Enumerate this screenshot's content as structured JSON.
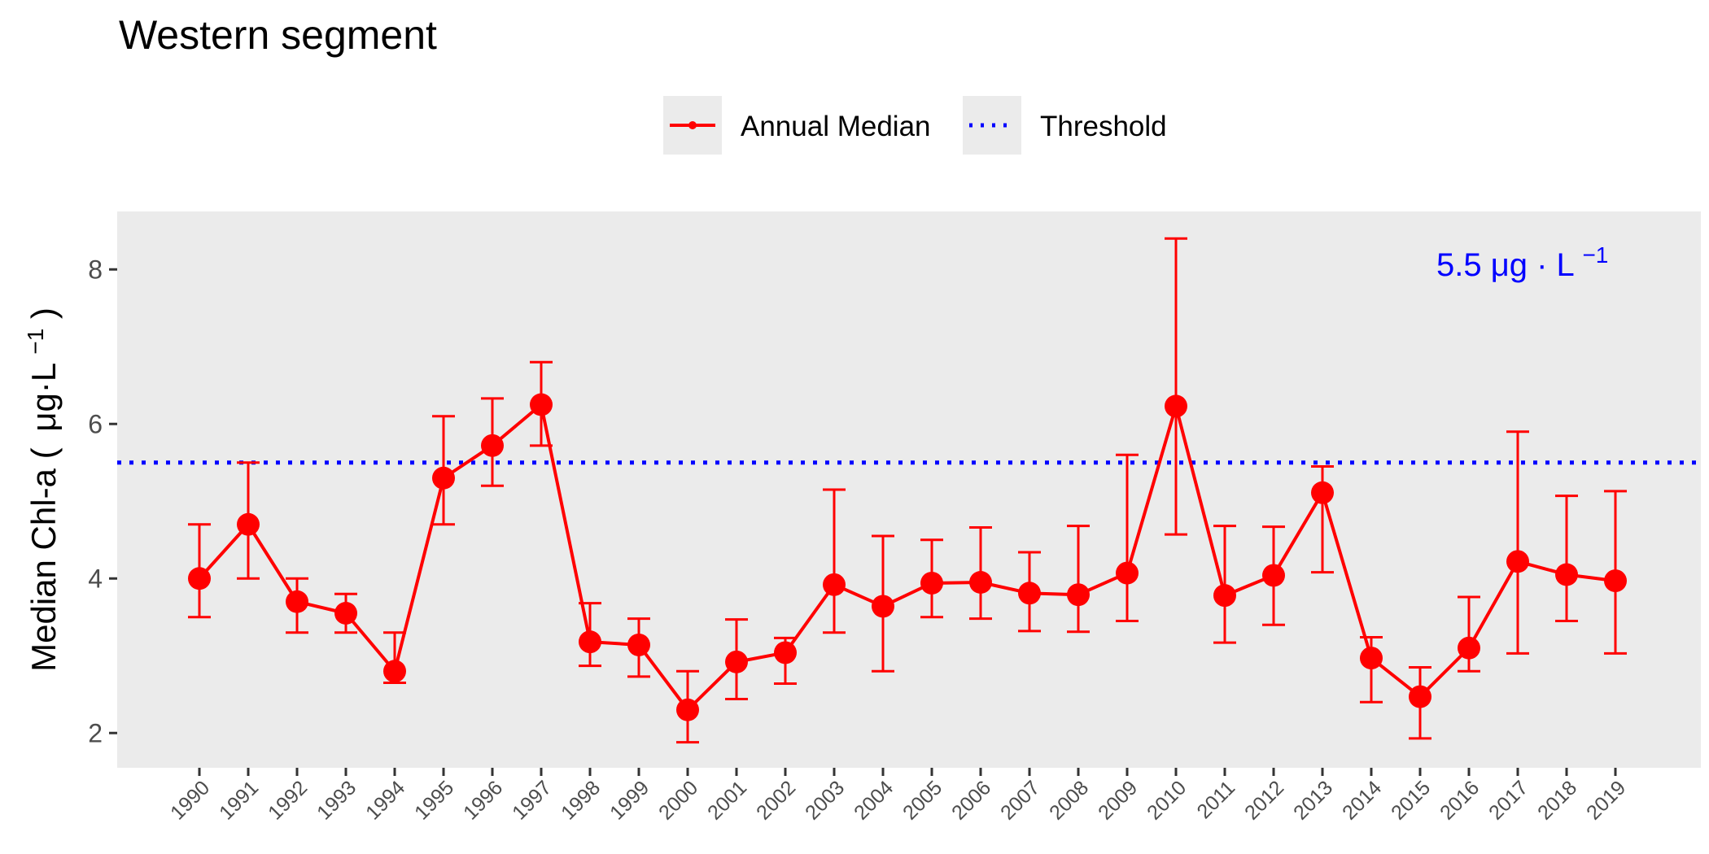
{
  "chart_data": {
    "type": "line",
    "title": "Western segment",
    "ylabel_main": "Median Chl-a (",
    "ylabel_unit": "μg·L",
    "ylabel_exp": "−1",
    "ylabel_close": ")",
    "xlabel": "",
    "ylim": [
      1.55,
      8.75
    ],
    "yticks": [
      2,
      4,
      6,
      8
    ],
    "grid": false,
    "legend_position": "top",
    "categories": [
      "1990",
      "1991",
      "1992",
      "1993",
      "1994",
      "1995",
      "1996",
      "1997",
      "1998",
      "1999",
      "2000",
      "2001",
      "2002",
      "2003",
      "2004",
      "2005",
      "2006",
      "2007",
      "2008",
      "2009",
      "2010",
      "2011",
      "2012",
      "2013",
      "2014",
      "2015",
      "2016",
      "2017",
      "2018",
      "2019"
    ],
    "series": [
      {
        "name": "Annual Median",
        "color": "#ff0000",
        "values": [
          4.0,
          4.7,
          3.7,
          3.55,
          2.8,
          5.3,
          5.72,
          6.25,
          3.18,
          3.14,
          2.3,
          2.92,
          3.04,
          3.92,
          3.64,
          3.94,
          3.95,
          3.81,
          3.79,
          4.07,
          6.23,
          3.78,
          4.04,
          5.11,
          2.97,
          2.47,
          3.1,
          4.22,
          4.05,
          3.97
        ],
        "err_low": [
          3.5,
          4.0,
          3.3,
          3.3,
          2.65,
          4.7,
          5.2,
          5.72,
          2.87,
          2.73,
          1.88,
          2.44,
          2.64,
          3.3,
          2.8,
          3.5,
          3.48,
          3.32,
          3.31,
          3.45,
          4.57,
          3.17,
          3.4,
          4.08,
          2.4,
          1.93,
          2.8,
          3.03,
          3.45,
          3.03
        ],
        "err_high": [
          4.7,
          5.5,
          4.0,
          3.8,
          3.3,
          6.1,
          6.33,
          6.8,
          3.68,
          3.48,
          2.8,
          3.47,
          3.23,
          5.15,
          4.55,
          4.5,
          4.66,
          4.34,
          4.68,
          5.6,
          8.4,
          4.68,
          4.67,
          5.45,
          3.24,
          2.85,
          3.76,
          5.9,
          5.07,
          5.13
        ]
      }
    ],
    "threshold": {
      "name": "Threshold",
      "value": 5.5,
      "color": "#0000ff",
      "label_value": "5.5 ",
      "label_unit": "μg · L",
      "label_exp": "−1"
    },
    "colors": {
      "panel_background": "#ebebeb",
      "legend_key_background": "#ebebeb",
      "axis_text": "#4d4d4d"
    }
  }
}
